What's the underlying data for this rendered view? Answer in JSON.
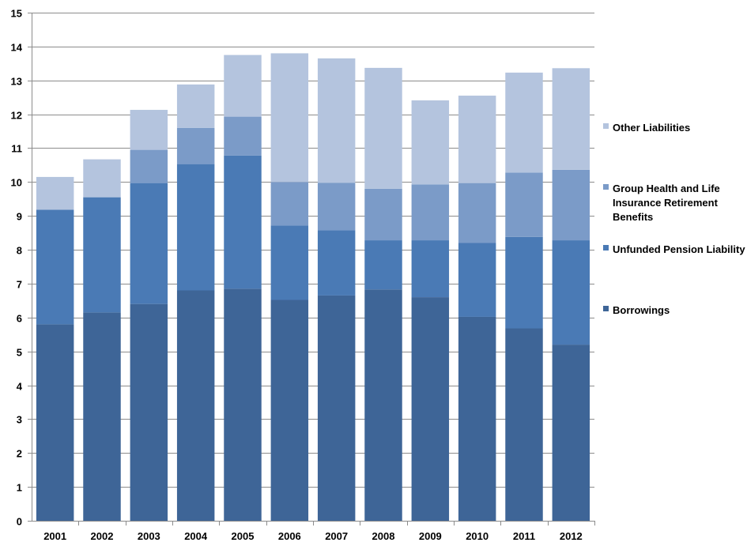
{
  "chart_data": {
    "type": "bar",
    "stacked": true,
    "title": "",
    "xlabel": "",
    "ylabel": "",
    "ylim": [
      0,
      15
    ],
    "yticks": [
      0,
      1,
      2,
      3,
      4,
      5,
      6,
      7,
      8,
      9,
      10,
      11,
      12,
      13,
      14,
      15
    ],
    "grid": true,
    "legend_position": "right",
    "categories": [
      "2001",
      "2002",
      "2003",
      "2004",
      "2005",
      "2006",
      "2007",
      "2008",
      "2009",
      "2010",
      "2011",
      "2012"
    ],
    "series": [
      {
        "name": "Borrowings",
        "color": "#3e6597",
        "values": [
          5.8,
          6.15,
          6.4,
          6.8,
          6.85,
          6.52,
          6.65,
          6.83,
          6.6,
          6.02,
          5.68,
          5.2
        ]
      },
      {
        "name": "Unfunded Pension Liability",
        "color": "#4a7ab5",
        "values": [
          3.38,
          3.4,
          3.57,
          3.73,
          3.93,
          2.2,
          1.93,
          1.45,
          1.68,
          2.18,
          2.7,
          3.08
        ]
      },
      {
        "name": "Group Health and Life Insurance Retirement Benefits",
        "color": "#7b9bc8",
        "values": [
          0,
          0,
          0.98,
          1.07,
          1.15,
          1.28,
          1.4,
          1.52,
          1.65,
          1.77,
          1.9,
          2.08
        ]
      },
      {
        "name": "Other Liabilities",
        "color": "#b4c4de",
        "values": [
          0.97,
          1.12,
          1.18,
          1.28,
          1.82,
          3.8,
          3.67,
          3.57,
          2.48,
          2.58,
          2.95,
          3.0
        ]
      }
    ],
    "legend_lines": [
      [
        "Other Liabilities"
      ],
      [
        "Group Health and Life",
        "Insurance Retirement",
        "Benefits"
      ],
      [
        "Unfunded Pension Liability"
      ],
      [
        "Borrowings"
      ]
    ]
  }
}
